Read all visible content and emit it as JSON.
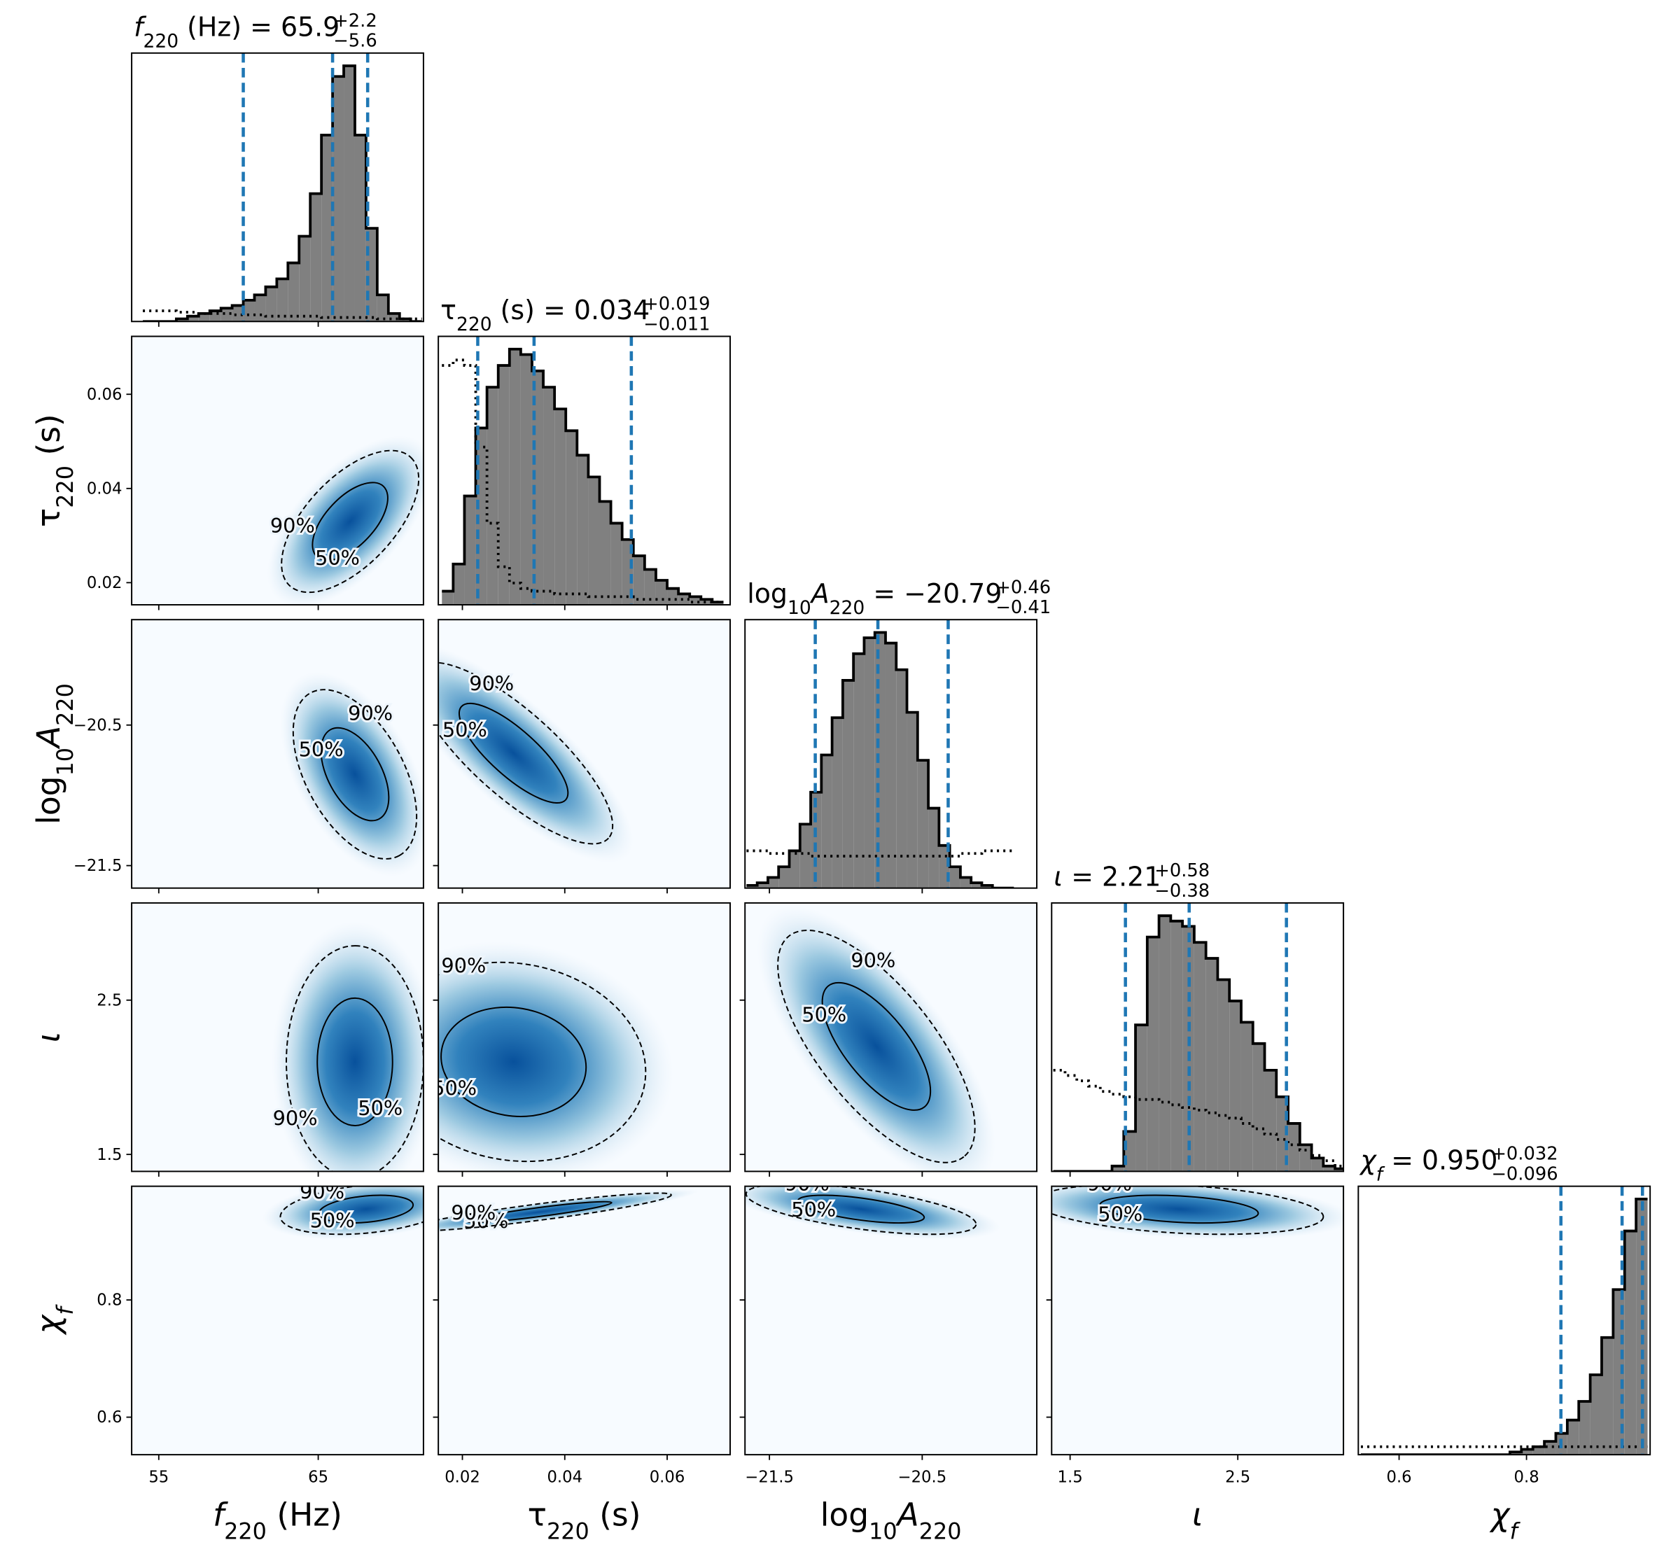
{
  "chart_data": {
    "type": "corner",
    "contour_labels": [
      "50%",
      "90%"
    ],
    "parameters": [
      {
        "label": [
          {
            "text": "f",
            "italic": true
          },
          {
            "text": "220",
            "sub": true
          },
          {
            "text": " (Hz)"
          }
        ],
        "title": {
          "value": "= 65.9",
          "plus": "+2.2",
          "minus": "−5.6"
        },
        "lim": [
          53.3,
          71.6
        ],
        "ticks": [
          55,
          65
        ],
        "quantiles": [
          60.3,
          65.9,
          68.1
        ],
        "bins": [
          54,
          54.7,
          55.4,
          56.1,
          56.8,
          57.5,
          58.2,
          58.9,
          59.6,
          60.3,
          61,
          61.7,
          62.4,
          63.1,
          63.8,
          64.5,
          65.2,
          65.9,
          66.6,
          67.3,
          68,
          68.7,
          69.4,
          70.1,
          70.8,
          71.5
        ],
        "counts": [
          0,
          0,
          0,
          1,
          2,
          3,
          4,
          5,
          6,
          8,
          10,
          13,
          16,
          22,
          32,
          48,
          70,
          92,
          96,
          70,
          35,
          10,
          3,
          1,
          0
        ],
        "prior": [
          4,
          4,
          4,
          3.5,
          3.5,
          3,
          3,
          3,
          2.5,
          2.5,
          2.5,
          2,
          2,
          2,
          2,
          2,
          1.5,
          1.5,
          1.5,
          1.5,
          1.5,
          1,
          1,
          1,
          1
        ]
      },
      {
        "label": [
          {
            "text": "τ"
          },
          {
            "text": "220",
            "sub": true
          },
          {
            "text": " (s)"
          }
        ],
        "title": {
          "value": "= 0.034",
          "plus": "+0.019",
          "minus": "−0.011"
        },
        "lim": [
          0.0153,
          0.0723
        ],
        "ticks": [
          0.02,
          0.04,
          0.06
        ],
        "quantiles": [
          0.023,
          0.034,
          0.053
        ],
        "bins": [
          0.016,
          0.0182,
          0.0204,
          0.0226,
          0.0248,
          0.027,
          0.0292,
          0.0314,
          0.0336,
          0.0358,
          0.038,
          0.0402,
          0.0424,
          0.0446,
          0.0468,
          0.049,
          0.0512,
          0.0534,
          0.0556,
          0.0578,
          0.06,
          0.0622,
          0.0644,
          0.0666,
          0.0688,
          0.071
        ],
        "counts": [
          5,
          15,
          40,
          65,
          80,
          88,
          94,
          92,
          86,
          80,
          72,
          64,
          55,
          47,
          38,
          30,
          24,
          18,
          13,
          9,
          6,
          4,
          3,
          2,
          1
        ],
        "prior": [
          88,
          90,
          88,
          58,
          30,
          14,
          8,
          6,
          5,
          5,
          4,
          4,
          4,
          3,
          3,
          3,
          3,
          2,
          2,
          2,
          2,
          2,
          1,
          1,
          1
        ]
      },
      {
        "label": [
          {
            "text": "log"
          },
          {
            "text": "10",
            "sub": true
          },
          {
            "text": "A",
            "italic": true
          },
          {
            "text": "220",
            "sub": true
          }
        ],
        "title": {
          "value": "= −20.79",
          "plus": "+0.46",
          "minus": "−0.41"
        },
        "lim": [
          -21.66,
          -19.75
        ],
        "ticks": [
          {
            "value": -21.5,
            "label": "−21.5"
          },
          {
            "value": -20.5,
            "label": "−20.5"
          }
        ],
        "quantiles": [
          -21.2,
          -20.79,
          -20.33
        ],
        "bins": [
          -21.65,
          -21.58,
          -21.51,
          -21.44,
          -21.37,
          -21.3,
          -21.23,
          -21.16,
          -21.09,
          -21.02,
          -20.95,
          -20.88,
          -20.81,
          -20.74,
          -20.67,
          -20.6,
          -20.53,
          -20.46,
          -20.39,
          -20.32,
          -20.25,
          -20.18,
          -20.11,
          -20.04,
          -19.97,
          -19.9
        ],
        "counts": [
          1,
          2,
          4,
          8,
          14,
          24,
          36,
          50,
          64,
          78,
          88,
          94,
          96,
          92,
          82,
          66,
          48,
          30,
          16,
          8,
          4,
          2,
          1,
          0,
          0
        ],
        "prior": [
          14,
          14,
          13,
          13,
          13,
          13,
          12,
          12,
          12,
          12,
          12,
          12,
          12,
          12,
          12,
          12,
          12,
          12,
          12,
          12,
          13,
          13,
          14,
          14,
          14
        ]
      },
      {
        "label": [
          {
            "text": "ι",
            "italic": true
          }
        ],
        "title": {
          "value": "= 2.21",
          "plus": "+0.58",
          "minus": "−0.38"
        },
        "lim": [
          1.39,
          3.13
        ],
        "ticks": [
          1.5,
          2.5
        ],
        "quantiles": [
          1.83,
          2.21,
          2.79
        ],
        "bins": [
          1.4,
          1.47,
          1.54,
          1.61,
          1.68,
          1.75,
          1.82,
          1.89,
          1.96,
          2.03,
          2.1,
          2.17,
          2.24,
          2.31,
          2.38,
          2.45,
          2.52,
          2.59,
          2.66,
          2.73,
          2.8,
          2.87,
          2.94,
          3.01,
          3.08,
          3.15
        ],
        "counts": [
          0,
          0,
          0,
          0,
          0,
          2,
          15,
          55,
          88,
          96,
          94,
          92,
          86,
          80,
          72,
          64,
          56,
          48,
          38,
          28,
          18,
          10,
          5,
          2,
          1
        ],
        "prior": [
          38,
          36,
          34,
          32,
          30,
          29,
          28,
          27,
          27,
          26,
          25,
          24,
          23,
          22,
          21,
          20,
          18,
          16,
          14,
          12,
          10,
          8,
          6,
          4,
          2
        ]
      },
      {
        "label": [
          {
            "text": "χ",
            "italic": true
          },
          {
            "text": "f",
            "sub": true,
            "italic": true
          }
        ],
        "title": {
          "value": "= 0.950",
          "plus": "+0.032",
          "minus": "−0.096"
        },
        "lim": [
          0.536,
          0.994
        ],
        "ticks": [
          0.6,
          0.8
        ],
        "quantiles": [
          0.854,
          0.95,
          0.982
        ],
        "bins": [
          0.54,
          0.558,
          0.576,
          0.594,
          0.612,
          0.63,
          0.648,
          0.666,
          0.684,
          0.702,
          0.72,
          0.738,
          0.756,
          0.774,
          0.792,
          0.81,
          0.828,
          0.846,
          0.864,
          0.882,
          0.9,
          0.918,
          0.936,
          0.954,
          0.972,
          0.99
        ],
        "counts": [
          0,
          0,
          0,
          0,
          0,
          0,
          0,
          0,
          0,
          0,
          0,
          0,
          0,
          1,
          2,
          3,
          5,
          8,
          13,
          20,
          30,
          44,
          62,
          84,
          96
        ],
        "prior": [
          3,
          3,
          3,
          3,
          3,
          3,
          3,
          3,
          3,
          3,
          3,
          3,
          3,
          3,
          3,
          3,
          3,
          3,
          3,
          3,
          3,
          3,
          3,
          3,
          3
        ]
      }
    ],
    "pairs": [
      {
        "peak": [
          67,
          0.033
        ],
        "sigma": [
          2.0,
          0.007
        ],
        "rho": 0.6
      },
      {
        "peak": [
          67.3,
          -20.85
        ],
        "sigma": [
          1.8,
          0.28
        ],
        "rho": -0.5
      },
      {
        "peak": [
          0.03,
          -20.7
        ],
        "sigma": [
          0.009,
          0.3
        ],
        "rho": -0.8
      },
      {
        "peak": [
          67.3,
          2.1
        ],
        "sigma": [
          2.0,
          0.35
        ],
        "rho": 0
      },
      {
        "peak": [
          0.03,
          2.1
        ],
        "sigma": [
          0.012,
          0.3
        ],
        "rho": -0.1
      },
      {
        "peak": [
          -20.8,
          2.2
        ],
        "sigma": [
          0.3,
          0.35
        ],
        "rho": -0.7
      },
      {
        "peak": [
          68,
          0.955
        ],
        "sigma": [
          2.5,
          0.02
        ],
        "rho": 0.3
      },
      {
        "peak": [
          0.035,
          0.95
        ],
        "sigma": [
          0.012,
          0.015
        ],
        "rho": 0.9
      },
      {
        "peak": [
          -20.9,
          0.955
        ],
        "sigma": [
          0.35,
          0.02
        ],
        "rho": -0.6
      },
      {
        "peak": [
          2.15,
          0.955
        ],
        "sigma": [
          0.4,
          0.02
        ],
        "rho": -0.3
      }
    ]
  }
}
